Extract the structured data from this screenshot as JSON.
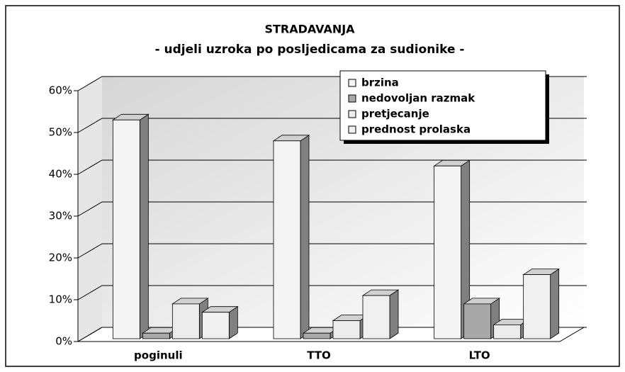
{
  "chart_data": {
    "type": "bar3d",
    "title": "STRADAVANJA",
    "subtitle": "- udjeli uzroka po posljedicama za sudionike -",
    "categories": [
      "poginuli",
      "TTO",
      "LTO"
    ],
    "series": [
      {
        "name": "brzina",
        "color": "#f4f4f4",
        "values": [
          53,
          48,
          42
        ]
      },
      {
        "name": "nedovoljan razmak",
        "color": "#a8a8a8",
        "values": [
          2,
          2,
          9
        ]
      },
      {
        "name": "pretjecanje",
        "color": "#ececec",
        "values": [
          9,
          5,
          4
        ]
      },
      {
        "name": "prednost prolaska",
        "color": "#f0f0f0",
        "values": [
          7,
          11,
          16
        ]
      }
    ],
    "ylim": [
      0,
      60
    ],
    "yticks": [
      {
        "value": 0,
        "label": "0%"
      },
      {
        "value": 10,
        "label": "10%"
      },
      {
        "value": 20,
        "label": "20%"
      },
      {
        "value": 30,
        "label": "30%"
      },
      {
        "value": 40,
        "label": "40%"
      },
      {
        "value": 50,
        "label": "50%"
      },
      {
        "value": 60,
        "label": "60%"
      }
    ],
    "grid": true,
    "legend": "upper right"
  }
}
